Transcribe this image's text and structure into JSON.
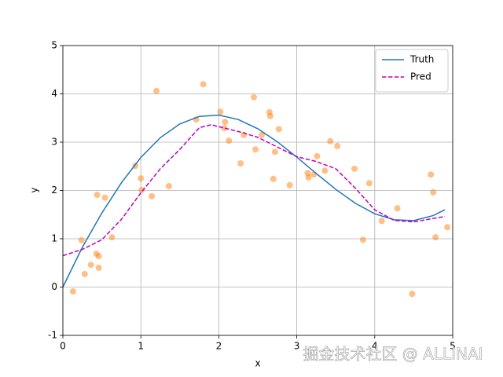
{
  "chart_data": {
    "type": "line",
    "xlabel": "x",
    "ylabel": "y",
    "xlim": [
      0,
      5
    ],
    "ylim": [
      -1,
      5
    ],
    "xticks": [
      0,
      1,
      2,
      3,
      4,
      5
    ],
    "yticks": [
      -1,
      0,
      1,
      2,
      3,
      4,
      5
    ],
    "grid": true,
    "legend": "upper right",
    "watermark": "掘金技术社区 @ ALLINAI",
    "series": [
      {
        "type": "scatter",
        "color": "#ff7f0e",
        "alpha": 0.5,
        "x": [
          0.13,
          0.24,
          0.28,
          0.36,
          0.43,
          0.46,
          0.46,
          0.44,
          0.54,
          0.63,
          0.93,
          1.0,
          1.01,
          1.14,
          1.2,
          1.36,
          1.71,
          1.8,
          2.02,
          2.08,
          2.07,
          2.13,
          2.28,
          2.32,
          2.45,
          2.47,
          2.55,
          2.65,
          2.66,
          2.7,
          2.72,
          2.77,
          2.91,
          3.14,
          3.15,
          3.22,
          3.26,
          3.36,
          3.43,
          3.52,
          3.74,
          3.85,
          3.93,
          4.09,
          4.29,
          4.48,
          4.72,
          4.75,
          4.78,
          4.93
        ],
        "values": [
          -0.09,
          0.97,
          0.27,
          0.46,
          0.69,
          0.64,
          0.4,
          1.91,
          1.85,
          1.03,
          2.51,
          2.25,
          2.01,
          1.88,
          4.06,
          2.09,
          3.47,
          4.2,
          3.63,
          3.42,
          3.29,
          3.03,
          2.56,
          3.15,
          3.93,
          2.85,
          3.15,
          3.62,
          3.54,
          2.24,
          2.8,
          3.27,
          2.11,
          2.36,
          2.27,
          2.33,
          2.71,
          2.41,
          3.02,
          2.92,
          2.45,
          0.98,
          2.15,
          1.37,
          1.63,
          -0.14,
          2.33,
          1.96,
          1.03,
          1.24
        ]
      },
      {
        "type": "line",
        "name": "Truth",
        "color": "#1f77b4",
        "linestyle": "solid",
        "x": [
          0,
          0.25,
          0.5,
          0.75,
          1,
          1.25,
          1.5,
          1.75,
          2,
          2.25,
          2.5,
          2.75,
          3,
          3.25,
          3.5,
          3.75,
          4,
          4.25,
          4.5,
          4.75,
          4.9
        ],
        "values": [
          0,
          0.825,
          1.533,
          2.157,
          2.683,
          3.093,
          3.378,
          3.533,
          3.56,
          3.469,
          3.278,
          3.009,
          2.69,
          2.35,
          2.023,
          1.736,
          1.517,
          1.392,
          1.376,
          1.48,
          1.6
        ]
      },
      {
        "type": "line",
        "name": "Pred",
        "color": "#bf00bf",
        "linestyle": "dashed",
        "x": [
          0,
          0.25,
          0.5,
          0.75,
          1,
          1.25,
          1.5,
          1.75,
          1.9,
          2.1,
          2.3,
          2.5,
          2.75,
          3,
          3.25,
          3.5,
          3.75,
          4,
          4.25,
          4.5,
          4.75,
          4.9
        ],
        "values": [
          0.65,
          0.78,
          0.98,
          1.4,
          1.95,
          2.45,
          2.85,
          3.3,
          3.36,
          3.28,
          3.2,
          3.1,
          2.9,
          2.7,
          2.6,
          2.45,
          2.05,
          1.6,
          1.38,
          1.35,
          1.42,
          1.46
        ]
      }
    ]
  }
}
